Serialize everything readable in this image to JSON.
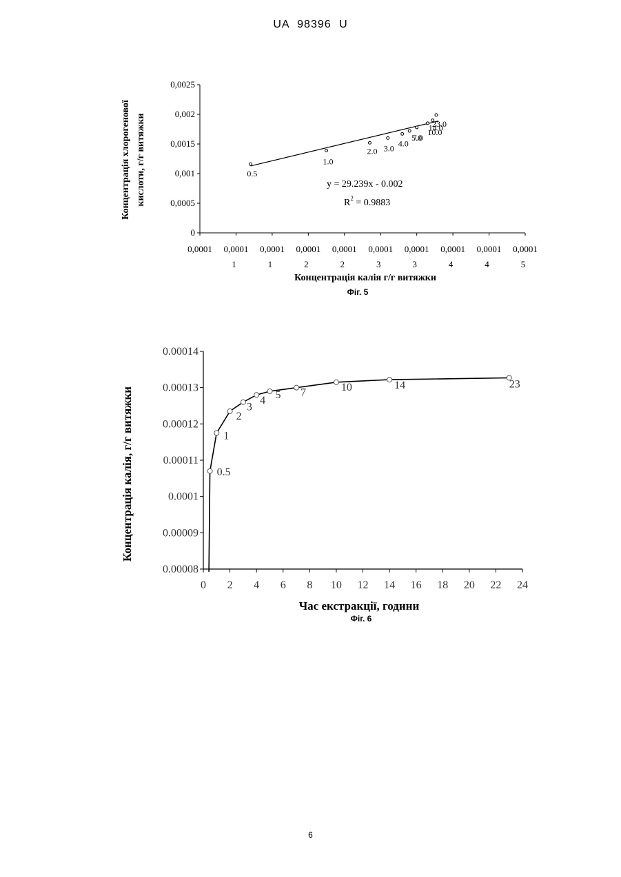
{
  "header": {
    "text": "UA   98396   U"
  },
  "page_number": "6",
  "fig5": {
    "caption": "Фіг. 5",
    "equation": "y = 29.239x - 0.002",
    "r2_prefix": "R",
    "r2_sup": "2",
    "r2_value": " = 0.9883",
    "chart_data": {
      "type": "scatter",
      "ylabel_line1": "Концентрація хлорогенової",
      "ylabel_line2": "кислоти, г/г витяжки",
      "xlabel": "Концентрація калія г/г витяжки",
      "ylim": [
        0,
        0.0025
      ],
      "y_ticks": [
        "0,0025",
        "0,002",
        "0,0015",
        "0,001",
        "0,0005",
        "0"
      ],
      "x_tick_top": [
        "0,0001",
        "0,0001",
        "0,0001",
        "0,0001",
        "0,0001",
        "0,0001",
        "0,0001",
        "0,0001",
        "0,0001",
        "0,0001"
      ],
      "x_tick_bottom": [
        "",
        "1",
        "1",
        "2",
        "2",
        "3",
        "3",
        "4",
        "4",
        "5"
      ],
      "points": [
        {
          "label": "0.5",
          "x": 0.000107,
          "y": 0.00116
        },
        {
          "label": "1.0",
          "x": 0.0001175,
          "y": 0.00139
        },
        {
          "label": "2.0",
          "x": 0.0001235,
          "y": 0.00152
        },
        {
          "label": "3.0",
          "x": 0.000126,
          "y": 0.0016
        },
        {
          "label": "4.0",
          "x": 0.000128,
          "y": 0.00167
        },
        {
          "label": "5.0",
          "x": 0.000129,
          "y": 0.00172
        },
        {
          "label": "7.0",
          "x": 0.00013,
          "y": 0.00178
        },
        {
          "label": "10.0",
          "x": 0.0001315,
          "y": 0.00185
        },
        {
          "label": "14.0",
          "x": 0.0001322,
          "y": 0.0019
        },
        {
          "label": "23.0",
          "x": 0.0001327,
          "y": 0.00199
        }
      ],
      "trendline": {
        "slope": 29.239,
        "intercept": -0.002
      }
    }
  },
  "fig6": {
    "caption": "Фіг. 6",
    "chart_data": {
      "type": "line",
      "ylabel": "Концентрація калія, г/г витяжки",
      "xlabel": "Час екстракції, години",
      "xlim": [
        0,
        24
      ],
      "ylim": [
        8e-05,
        0.00014
      ],
      "x_ticks": [
        "0",
        "2",
        "4",
        "6",
        "8",
        "10",
        "12",
        "14",
        "16",
        "18",
        "20",
        "22",
        "24"
      ],
      "y_ticks": [
        "0.00014",
        "0.00013",
        "0.00012",
        "0.00011",
        "0.0001",
        "0.00009",
        "0.00008"
      ],
      "points": [
        {
          "label": "0.5",
          "x": 0.5,
          "y": 0.000107
        },
        {
          "label": "1",
          "x": 1,
          "y": 0.0001175
        },
        {
          "label": "2",
          "x": 2,
          "y": 0.0001235
        },
        {
          "label": "3",
          "x": 3,
          "y": 0.000126
        },
        {
          "label": "4",
          "x": 4,
          "y": 0.000128
        },
        {
          "label": "5",
          "x": 5,
          "y": 0.000129
        },
        {
          "label": "7",
          "x": 7,
          "y": 0.00013
        },
        {
          "label": "10",
          "x": 10,
          "y": 0.0001315
        },
        {
          "label": "14",
          "x": 14,
          "y": 0.0001322
        },
        {
          "label": "23",
          "x": 23,
          "y": 0.0001327
        }
      ]
    }
  }
}
